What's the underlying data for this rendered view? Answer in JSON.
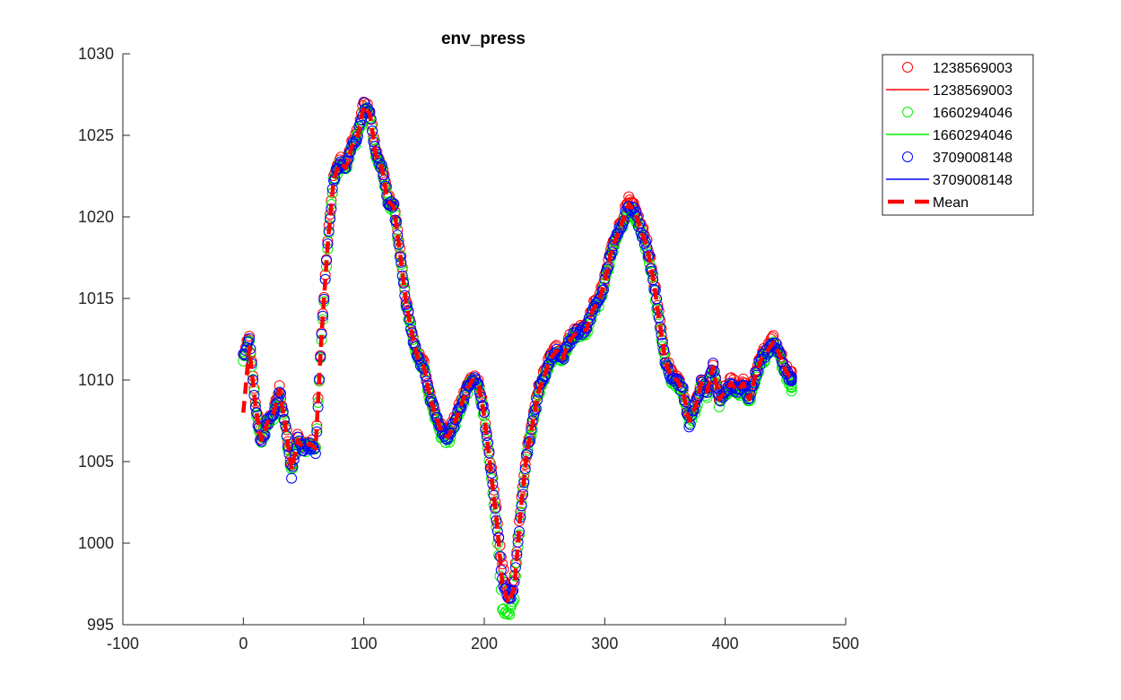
{
  "chart_data": {
    "type": "scatter",
    "title": "env_press",
    "xlabel": "",
    "ylabel": "",
    "xlim": [
      -100,
      500
    ],
    "ylim": [
      995,
      1030
    ],
    "xticks": [
      -100,
      0,
      100,
      200,
      300,
      400,
      500
    ],
    "yticks": [
      995,
      1000,
      1005,
      1010,
      1015,
      1020,
      1025,
      1030
    ],
    "xtick_labels": [
      "-100",
      "0",
      "100",
      "200",
      "300",
      "400",
      "500"
    ],
    "ytick_labels": [
      "995",
      "1000",
      "1005",
      "1010",
      "1015",
      "1020",
      "1025",
      "1030"
    ],
    "grid": false,
    "legend_position": "top-right, outside plot",
    "x": [
      0,
      5,
      10,
      15,
      20,
      25,
      30,
      35,
      40,
      45,
      50,
      55,
      60,
      65,
      70,
      75,
      80,
      85,
      90,
      95,
      100,
      105,
      110,
      115,
      120,
      125,
      130,
      135,
      140,
      145,
      150,
      155,
      160,
      165,
      170,
      175,
      180,
      185,
      190,
      195,
      200,
      205,
      210,
      215,
      220,
      225,
      230,
      235,
      240,
      245,
      250,
      255,
      260,
      265,
      270,
      275,
      280,
      285,
      290,
      295,
      300,
      305,
      310,
      315,
      320,
      325,
      330,
      335,
      340,
      345,
      350,
      355,
      360,
      365,
      370,
      375,
      380,
      385,
      390,
      395,
      400,
      405,
      410,
      415,
      420,
      425,
      430,
      435,
      440,
      445,
      450,
      455
    ],
    "series": [
      {
        "name": "1238569003",
        "marker": "circle",
        "color": "#ff0000",
        "values": [
          1011.5,
          1012.6,
          1008.5,
          1006.5,
          1007.5,
          1008.0,
          1009.5,
          1007.2,
          1004.8,
          1006.5,
          1006.0,
          1006.2,
          1006.0,
          1013.0,
          1018.5,
          1022.5,
          1023.5,
          1023.2,
          1024.5,
          1025.2,
          1027.0,
          1026.5,
          1024.0,
          1023.2,
          1021.2,
          1020.8,
          1018.0,
          1015.0,
          1013.0,
          1011.5,
          1011.0,
          1009.0,
          1008.0,
          1007.0,
          1006.8,
          1007.5,
          1008.5,
          1009.5,
          1010.2,
          1010.0,
          1008.0,
          1005.0,
          1002.0,
          998.5,
          996.8,
          997.8,
          1002.0,
          1005.5,
          1007.5,
          1009.5,
          1010.5,
          1011.5,
          1012.0,
          1011.5,
          1012.5,
          1013.0,
          1013.2,
          1013.3,
          1014.5,
          1015.0,
          1016.2,
          1018.0,
          1019.0,
          1020.0,
          1021.0,
          1020.5,
          1019.5,
          1018.5,
          1016.5,
          1014.0,
          1011.5,
          1010.5,
          1010.2,
          1009.5,
          1007.8,
          1008.5,
          1010.0,
          1009.5,
          1011.0,
          1009.0,
          1009.5,
          1010.0,
          1009.5,
          1010.0,
          1009.0,
          1010.5,
          1011.5,
          1012.0,
          1012.5,
          1011.8,
          1010.8,
          1010.3
        ]
      },
      {
        "name": "1238569003",
        "marker": "line",
        "color": "#ff0000",
        "values": []
      },
      {
        "name": "1660294046",
        "marker": "circle",
        "color": "#00ee00",
        "values": [
          1011.3,
          1012.4,
          1008.3,
          1006.3,
          1007.3,
          1007.8,
          1009.3,
          1007.0,
          1004.5,
          1006.2,
          1005.7,
          1006.0,
          1005.8,
          1012.7,
          1018.2,
          1022.2,
          1023.2,
          1022.9,
          1024.2,
          1024.9,
          1026.7,
          1026.2,
          1023.7,
          1022.9,
          1020.9,
          1020.5,
          1017.7,
          1014.7,
          1012.7,
          1011.2,
          1010.7,
          1008.6,
          1007.6,
          1006.4,
          1006.2,
          1007.2,
          1008.2,
          1009.2,
          1009.9,
          1009.7,
          1007.6,
          1004.4,
          1001.2,
          996.0,
          995.5,
          996.8,
          1001.5,
          1005.2,
          1007.2,
          1009.2,
          1010.2,
          1011.2,
          1011.7,
          1011.2,
          1012.2,
          1012.7,
          1012.9,
          1013.0,
          1014.2,
          1014.7,
          1015.9,
          1017.6,
          1018.6,
          1019.6,
          1020.6,
          1020.1,
          1019.0,
          1018.0,
          1016.1,
          1013.6,
          1011.1,
          1010.0,
          1009.8,
          1009.1,
          1007.4,
          1008.1,
          1009.6,
          1009.1,
          1010.6,
          1008.6,
          1009.1,
          1009.6,
          1009.1,
          1009.6,
          1008.6,
          1010.1,
          1011.1,
          1011.6,
          1012.1,
          1011.4,
          1010.4,
          1009.5
        ]
      },
      {
        "name": "1660294046",
        "marker": "line",
        "color": "#00ee00",
        "values": []
      },
      {
        "name": "3709008148",
        "marker": "circle",
        "color": "#0000ff",
        "values": [
          1011.4,
          1012.5,
          1008.4,
          1006.0,
          1007.4,
          1007.9,
          1009.4,
          1007.1,
          1004.2,
          1006.3,
          1005.8,
          1006.1,
          1005.5,
          1012.8,
          1018.3,
          1022.3,
          1023.3,
          1023.0,
          1024.3,
          1025.0,
          1026.8,
          1026.3,
          1023.8,
          1023.0,
          1021.0,
          1020.6,
          1017.8,
          1014.8,
          1012.8,
          1011.3,
          1010.8,
          1008.8,
          1007.8,
          1006.7,
          1006.5,
          1007.3,
          1008.3,
          1009.3,
          1010.0,
          1009.8,
          1007.8,
          1004.7,
          1001.6,
          997.8,
          996.5,
          997.4,
          1001.8,
          1005.3,
          1007.3,
          1009.3,
          1010.3,
          1011.3,
          1011.8,
          1011.3,
          1012.3,
          1012.8,
          1013.0,
          1013.1,
          1014.3,
          1014.8,
          1016.0,
          1017.8,
          1018.8,
          1019.8,
          1020.8,
          1020.3,
          1019.2,
          1018.2,
          1016.3,
          1013.8,
          1011.3,
          1010.2,
          1010.0,
          1009.3,
          1007.3,
          1008.3,
          1009.8,
          1009.3,
          1010.8,
          1008.8,
          1009.3,
          1009.8,
          1009.3,
          1009.8,
          1008.8,
          1010.3,
          1011.3,
          1011.8,
          1012.3,
          1011.6,
          1010.6,
          1010.0
        ]
      },
      {
        "name": "3709008148",
        "marker": "line",
        "color": "#0000ff",
        "values": []
      },
      {
        "name": "Mean",
        "marker": "dashed-line",
        "color": "#ff0000",
        "values": [
          1008.0,
          1012.0,
          1008.4,
          1006.3,
          1007.4,
          1007.9,
          1009.4,
          1007.1,
          1004.5,
          1006.3,
          1005.8,
          1006.1,
          1005.8,
          1012.8,
          1018.3,
          1022.3,
          1023.3,
          1023.0,
          1024.3,
          1025.0,
          1026.8,
          1026.3,
          1023.8,
          1023.0,
          1021.0,
          1020.6,
          1017.8,
          1014.8,
          1012.8,
          1011.3,
          1010.8,
          1008.8,
          1007.8,
          1006.7,
          1006.5,
          1007.3,
          1008.3,
          1009.3,
          1010.0,
          1009.8,
          1007.8,
          1004.7,
          1001.6,
          997.5,
          996.3,
          997.3,
          1001.8,
          1005.3,
          1007.3,
          1009.3,
          1010.3,
          1011.3,
          1011.8,
          1011.3,
          1012.3,
          1012.8,
          1013.0,
          1013.1,
          1014.3,
          1014.8,
          1016.0,
          1017.8,
          1018.8,
          1019.8,
          1020.8,
          1020.3,
          1019.2,
          1018.2,
          1016.3,
          1013.8,
          1011.3,
          1010.2,
          1010.0,
          1009.3,
          1007.5,
          1008.3,
          1009.8,
          1009.3,
          1010.8,
          1008.8,
          1009.3,
          1009.8,
          1009.3,
          1009.8,
          1008.8,
          1010.3,
          1011.3,
          1011.8,
          1012.3,
          1011.6,
          1010.6,
          1010.0
        ]
      }
    ]
  }
}
